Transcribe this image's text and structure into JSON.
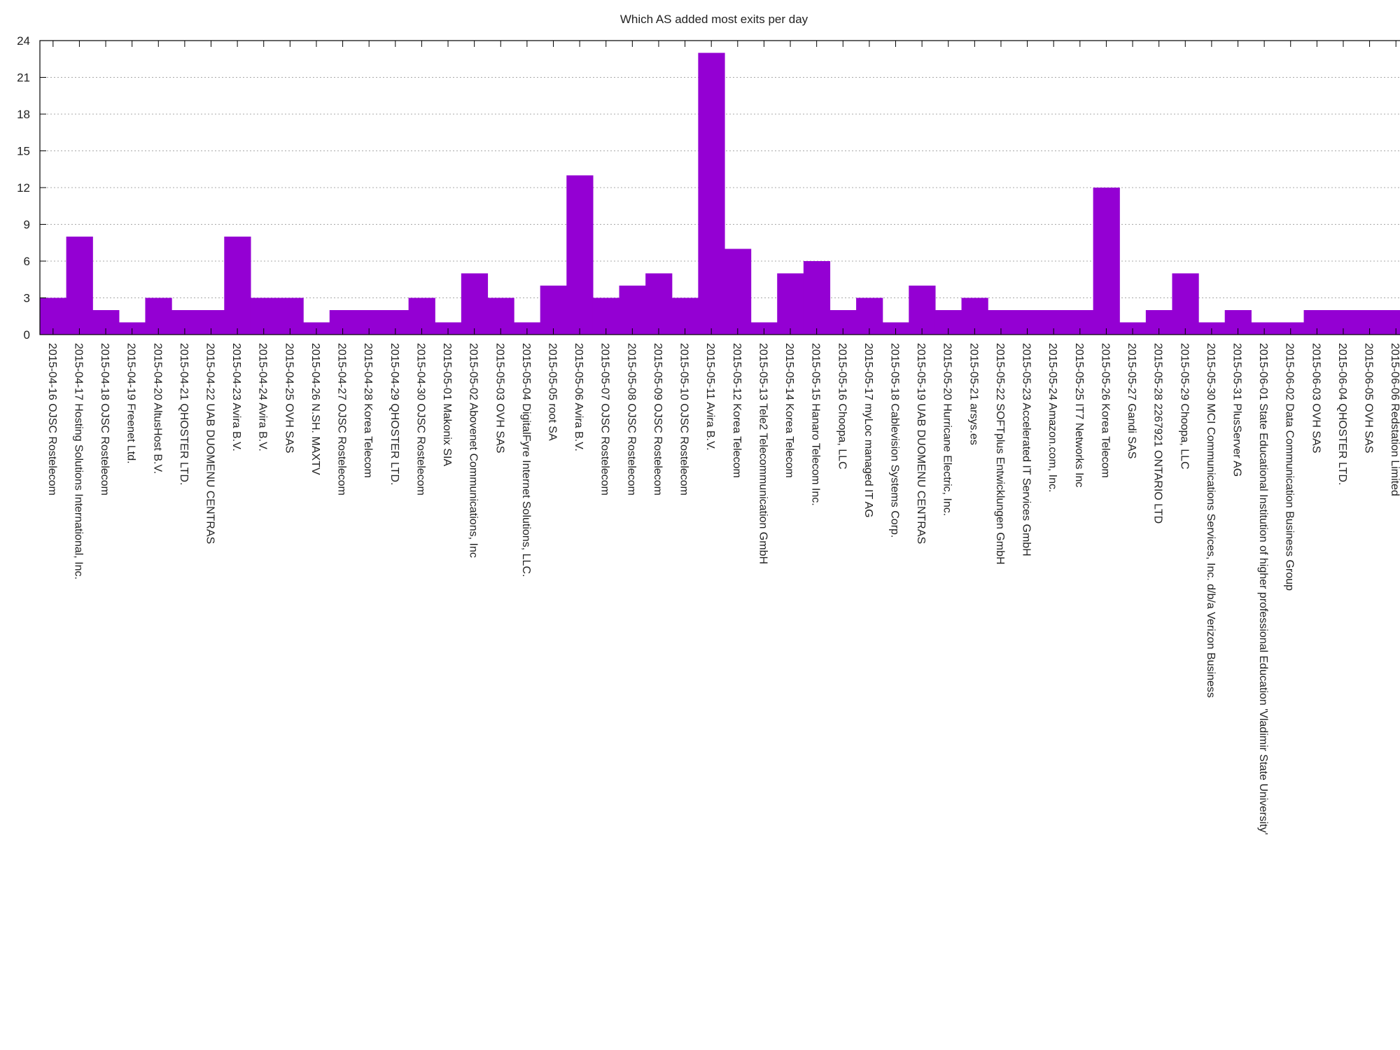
{
  "chart_data": {
    "type": "bar",
    "title": "Which AS added most exits per day",
    "xlabel": "",
    "ylabel": "",
    "ylim": [
      0,
      24
    ],
    "yticks": [
      0,
      3,
      6,
      9,
      12,
      15,
      18,
      21,
      24
    ],
    "grid": true,
    "bar_color": "#9400d3",
    "categories": [
      "2015-04-16 OJSC Rostelecom",
      "2015-04-17 Hosting Solutions International, Inc.",
      "2015-04-18 OJSC Rostelecom",
      "2015-04-19 Freenet Ltd.",
      "2015-04-20 AltusHost B.V.",
      "2015-04-21 QHOSTER LTD.",
      "2015-04-22 UAB DUOMENU CENTRAS",
      "2015-04-23 Avira B.V.",
      "2015-04-24 Avira B.V.",
      "2015-04-25 OVH SAS",
      "2015-04-26 N.SH. MAXTV",
      "2015-04-27 OJSC Rostelecom",
      "2015-04-28 Korea Telecom",
      "2015-04-29 QHOSTER LTD.",
      "2015-04-30 OJSC Rostelecom",
      "2015-05-01 Makonix SIA",
      "2015-05-02 Abovenet Communications, Inc",
      "2015-05-03 OVH SAS",
      "2015-05-04 DigitalFyre Internet Solutions, LLC.",
      "2015-05-05 root SA",
      "2015-05-06 Avira B.V.",
      "2015-05-07 OJSC Rostelecom",
      "2015-05-08 OJSC Rostelecom",
      "2015-05-09 OJSC Rostelecom",
      "2015-05-10 OJSC Rostelecom",
      "2015-05-11 Avira B.V.",
      "2015-05-12 Korea Telecom",
      "2015-05-13 Tele2 Telecommunication GmbH",
      "2015-05-14 Korea Telecom",
      "2015-05-15 Hanaro Telecom Inc.",
      "2015-05-16 Choopa, LLC",
      "2015-05-17 myLoc managed IT AG",
      "2015-05-18 Cablevision Systems Corp.",
      "2015-05-19 UAB DUOMENU CENTRAS",
      "2015-05-20 Hurricane Electric, Inc.",
      "2015-05-21 arsys.es",
      "2015-05-22 SOFTplus Entwicklungen GmbH",
      "2015-05-23 Accelerated IT Services GmbH",
      "2015-05-24 Amazon.com, Inc.",
      "2015-05-25 IT7 Networks Inc",
      "2015-05-26 Korea Telecom",
      "2015-05-27 Gandi SAS",
      "2015-05-28 2267921 ONTARIO LTD",
      "2015-05-29 Choopa, LLC",
      "2015-05-30 MCI Communications Services, Inc. d/b/a Verizon Business",
      "2015-05-31 PlusServer AG",
      "2015-06-01 State Educational Institution of higher professional Education 'Vladimir State University'",
      "2015-06-02 Data Communication Business Group",
      "2015-06-03 OVH SAS",
      "2015-06-04 QHOSTER LTD.",
      "2015-06-05 OVH SAS",
      "2015-06-06 Redstation Limited"
    ],
    "values": [
      3,
      8,
      2,
      1,
      3,
      2,
      2,
      8,
      3,
      3,
      1,
      2,
      2,
      2,
      3,
      1,
      5,
      3,
      1,
      4,
      13,
      3,
      4,
      5,
      3,
      23,
      7,
      1,
      5,
      6,
      2,
      3,
      1,
      4,
      2,
      3,
      2,
      2,
      2,
      2,
      12,
      1,
      2,
      5,
      1,
      2,
      1,
      1,
      2,
      2,
      2,
      2
    ]
  }
}
